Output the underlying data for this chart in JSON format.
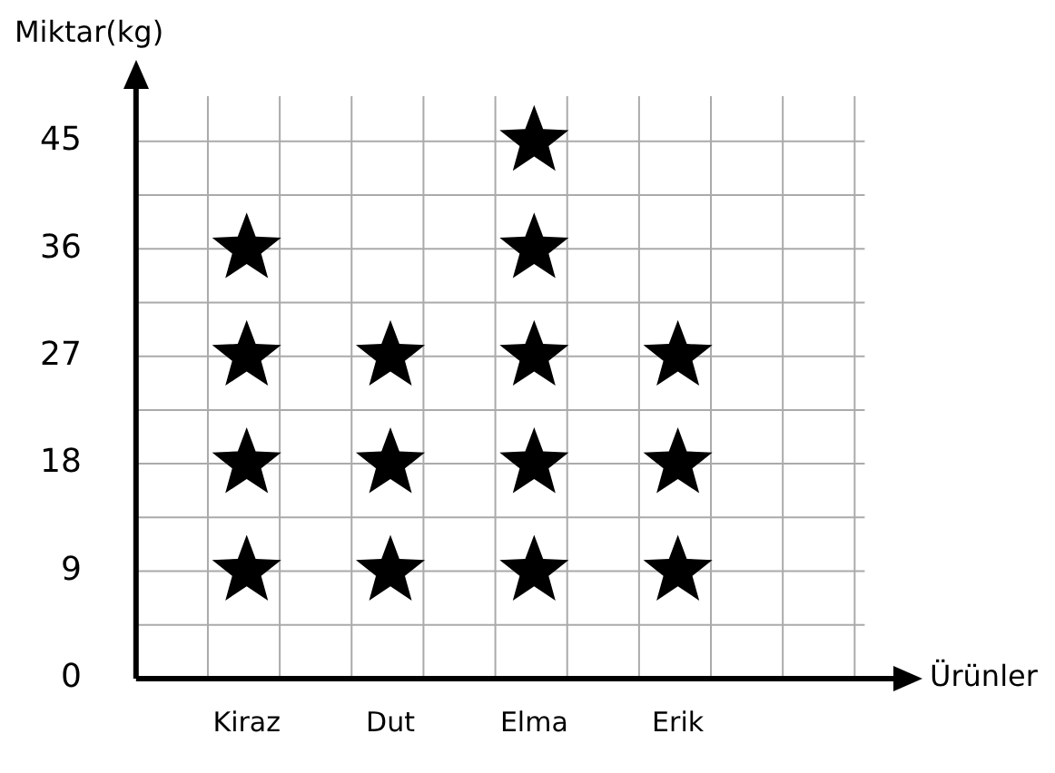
{
  "chart_data": {
    "type": "scatter",
    "ylabel": "Miktar(kg)",
    "xlabel": "Ürünler",
    "categories": [
      "Kiraz",
      "Dut",
      "Elma",
      "Erik"
    ],
    "ylim": [
      0,
      50
    ],
    "yticks": [
      0,
      9,
      18,
      27,
      36,
      45
    ],
    "grid": true,
    "marker": "star",
    "series": [
      {
        "type": "scatter",
        "color": "#000000",
        "x": [
          "Kiraz",
          "Kiraz",
          "Kiraz",
          "Kiraz",
          "Dut",
          "Dut",
          "Dut",
          "Elma",
          "Elma",
          "Elma",
          "Elma",
          "Elma",
          "Erik",
          "Erik",
          "Erik"
        ],
        "values": [
          9,
          18,
          27,
          36,
          9,
          18,
          27,
          9,
          18,
          27,
          36,
          45,
          9,
          18,
          27
        ]
      }
    ]
  }
}
